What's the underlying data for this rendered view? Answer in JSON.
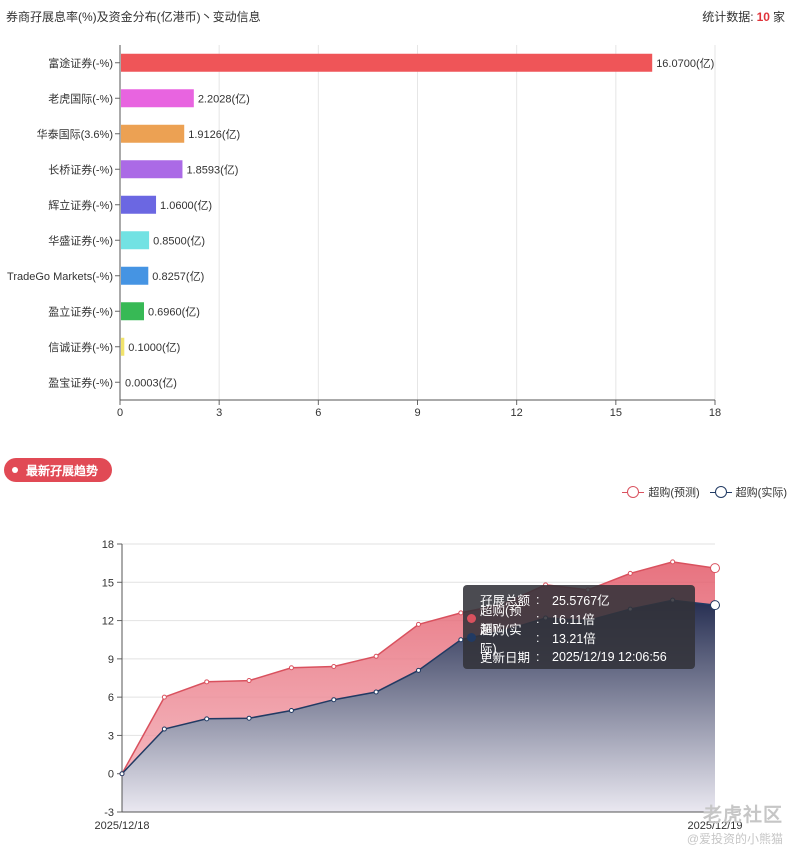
{
  "header": {
    "title": "券商孖展息率(%)及资金分布(亿港币)丶变动信息",
    "count_prefix": "统计数据:",
    "count": "10",
    "count_suffix": "家"
  },
  "section": {
    "label": "最新孖展趋势"
  },
  "legend": [
    {
      "name": "超购(预测)",
      "color": "#d9515e"
    },
    {
      "name": "超购(实际)",
      "color": "#213a63"
    }
  ],
  "chart_data": [
    {
      "type": "bar",
      "orientation": "horizontal",
      "categories": [
        "富途证券(-%)",
        "老虎国际(-%)",
        "华泰国际(3.6%)",
        "长桥证券(-%)",
        "辉立证券(-%)",
        "华盛证券(-%)",
        "TradeGo Markets(-%)",
        "盈立证券(-%)",
        "信诚证券(-%)",
        "盈宝证券(-%)"
      ],
      "values": [
        16.07,
        2.2028,
        1.9126,
        1.8593,
        1.06,
        0.85,
        0.8257,
        0.696,
        0.1,
        0.0003
      ],
      "value_labels": [
        "16.0700(亿)",
        "2.2028(亿)",
        "1.9126(亿)",
        "1.8593(亿)",
        "1.0600(亿)",
        "0.8500(亿)",
        "0.8257(亿)",
        "0.6960(亿)",
        "0.1000(亿)",
        "0.0003(亿)"
      ],
      "colors": [
        "#ef5558",
        "#e864e0",
        "#eca153",
        "#ab6ae6",
        "#6b67e2",
        "#72e2e3",
        "#4594e3",
        "#37b955",
        "#f1e36b",
        "#cccccc"
      ],
      "xlim": [
        0,
        18
      ],
      "xticks": [
        0,
        3,
        6,
        9,
        12,
        15,
        18
      ],
      "grid": true
    },
    {
      "type": "area",
      "x_start_label": "2025/12/18",
      "x_end_label": "2025/12/19",
      "ylim": [
        -3,
        18
      ],
      "yticks": [
        -3,
        0,
        3,
        6,
        9,
        12,
        15,
        18
      ],
      "grid": true,
      "series": [
        {
          "name": "超购(预测)",
          "values": [
            0,
            6.0,
            7.2,
            7.3,
            8.3,
            8.4,
            9.2,
            11.7,
            12.6,
            13.3,
            14.8,
            14.4,
            15.7,
            16.6,
            16.11
          ]
        },
        {
          "name": "超购(实际)",
          "values": [
            0,
            3.5,
            4.3,
            4.35,
            4.95,
            5.8,
            6.4,
            8.1,
            10.5,
            11.2,
            12.2,
            12.0,
            12.9,
            13.6,
            13.21
          ]
        }
      ],
      "tooltip": [
        {
          "label": "孖展总额",
          "value": "25.5767亿"
        },
        {
          "label": "超购(预测)",
          "value": "16.11倍"
        },
        {
          "label": "超购(实际)",
          "value": "13.21倍"
        },
        {
          "label": "更新日期",
          "value": "2025/12/19 12:06:56"
        }
      ]
    }
  ],
  "watermark": {
    "brand": "老虎社区",
    "user": "@爱投资的小熊猫"
  }
}
